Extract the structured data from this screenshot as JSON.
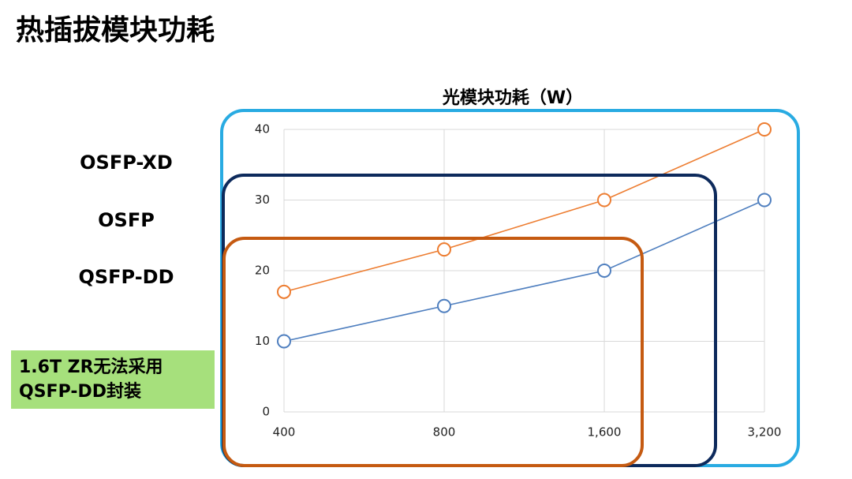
{
  "page_title": "热插拔模块功耗",
  "form_factors": [
    "OSFP-XD",
    "OSFP",
    "QSFP-DD"
  ],
  "note": [
    "1.6T ZR无法采用",
    "QSFP-DD封装"
  ],
  "chart_data": {
    "type": "line",
    "title": "光模块功耗（W）",
    "categories": [
      "400",
      "800",
      "1,600",
      "3,200"
    ],
    "series": [
      {
        "color": "#ed7d31",
        "values": [
          17,
          23,
          30,
          40
        ]
      },
      {
        "color": "#4f7fbf",
        "values": [
          10,
          15,
          20,
          30
        ]
      }
    ],
    "ylim": [
      0,
      40
    ],
    "yticks": [
      0,
      10,
      20,
      30,
      40
    ],
    "grid": true
  }
}
